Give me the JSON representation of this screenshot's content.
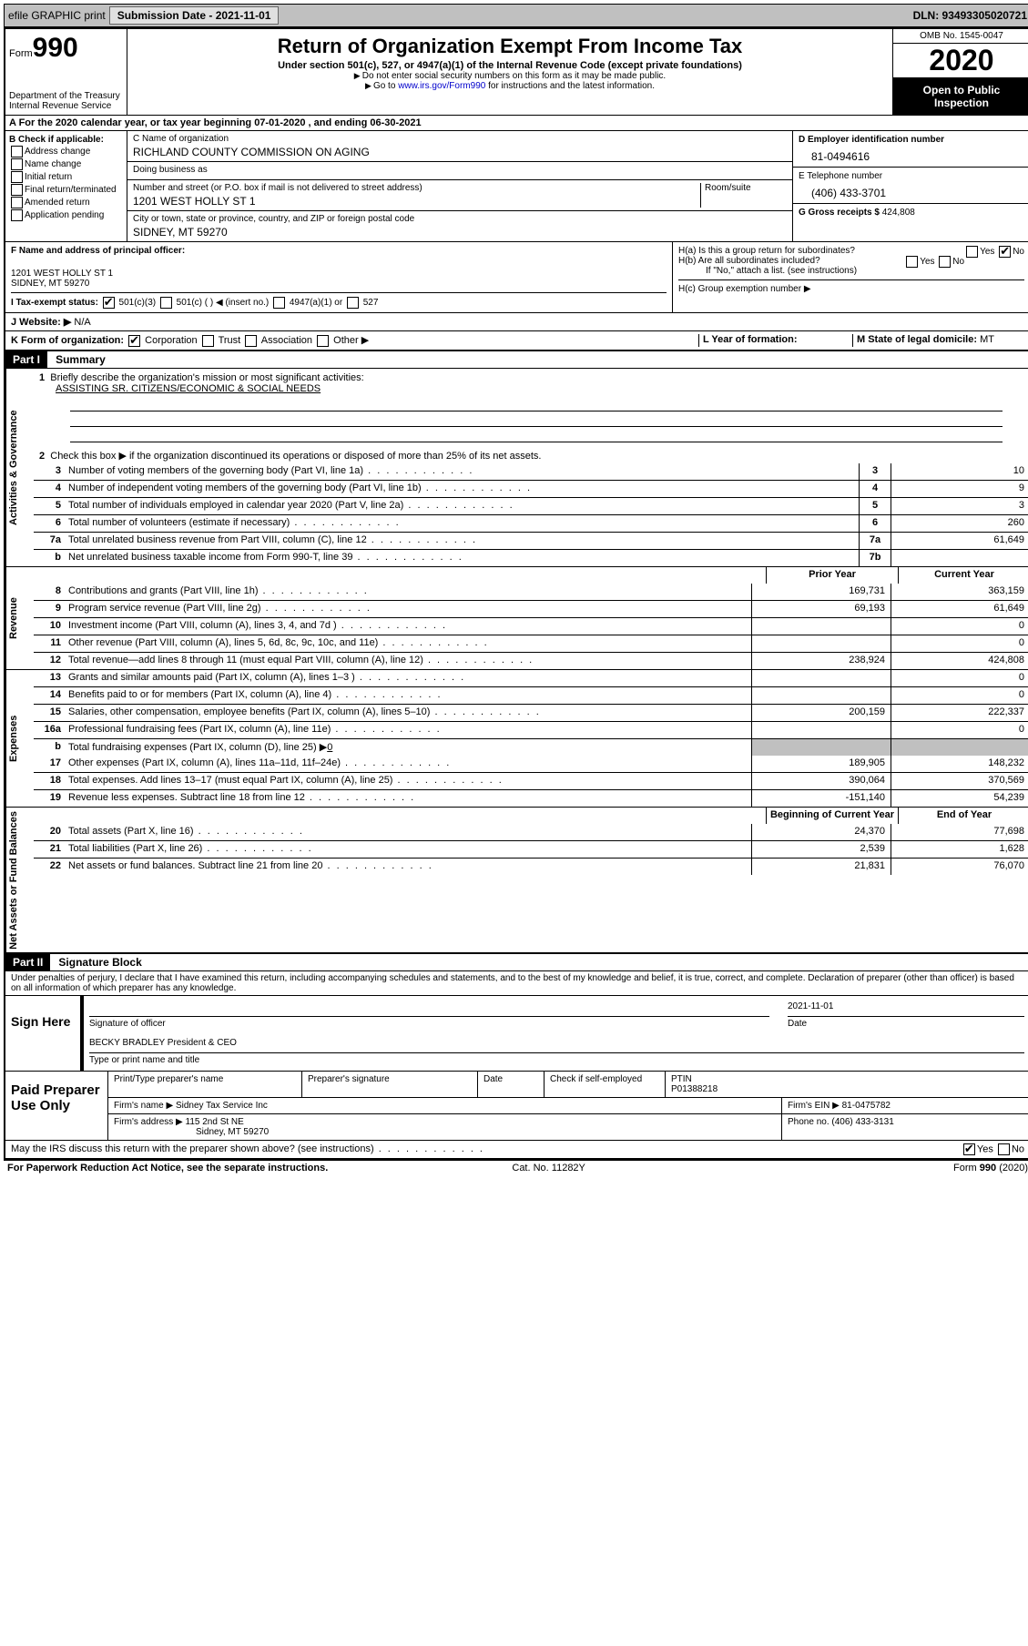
{
  "topbar": {
    "efile": "efile GRAPHIC print",
    "submission_label": "Submission Date - 2021-11-01",
    "dln": "DLN: 93493305020721"
  },
  "header": {
    "form_word": "Form",
    "form_num": "990",
    "dept1": "Department of the Treasury",
    "dept2": "Internal Revenue Service",
    "title": "Return of Organization Exempt From Income Tax",
    "sub1": "Under section 501(c), 527, or 4947(a)(1) of the Internal Revenue Code (except private foundations)",
    "sub2": "Do not enter social security numbers on this form as it may be made public.",
    "sub3_pre": "Go to ",
    "sub3_link": "www.irs.gov/Form990",
    "sub3_post": " for instructions and the latest information.",
    "omb": "OMB No. 1545-0047",
    "year": "2020",
    "inspect": "Open to Public Inspection"
  },
  "row_a": "A For the 2020 calendar year, or tax year beginning 07-01-2020    , and ending 06-30-2021",
  "col_b": {
    "label": "B Check if applicable:",
    "opts": [
      "Address change",
      "Name change",
      "Initial return",
      "Final return/terminated",
      "Amended return",
      "Application pending"
    ]
  },
  "col_c": {
    "name_label": "C Name of organization",
    "name": "RICHLAND COUNTY COMMISSION ON AGING",
    "dba_label": "Doing business as",
    "dba": "",
    "street_label": "Number and street (or P.O. box if mail is not delivered to street address)",
    "room_label": "Room/suite",
    "street": "1201 WEST HOLLY ST 1",
    "city_label": "City or town, state or province, country, and ZIP or foreign postal code",
    "city": "SIDNEY, MT  59270"
  },
  "col_d": {
    "ein_label": "D Employer identification number",
    "ein": "81-0494616",
    "phone_label": "E Telephone number",
    "phone": "(406) 433-3701",
    "gross_label": "G Gross receipts $",
    "gross": "424,808"
  },
  "block_f": {
    "label": "F Name and address of principal officer:",
    "addr1": "1201 WEST HOLLY ST 1",
    "addr2": "SIDNEY, MT  59270"
  },
  "block_h": {
    "ha": "H(a)  Is this a group return for subordinates?",
    "hb": "H(b)  Are all subordinates included?",
    "hb_note": "If \"No,\" attach a list. (see instructions)",
    "hc": "H(c)  Group exemption number ▶",
    "yes": "Yes",
    "no": "No"
  },
  "row_i": {
    "label": "I  Tax-exempt status:",
    "o1": "501(c)(3)",
    "o2": "501(c) (   ) ◀ (insert no.)",
    "o3": "4947(a)(1) or",
    "o4": "527"
  },
  "row_j": {
    "label": "J  Website: ▶",
    "val": "N/A"
  },
  "row_k": {
    "label": "K Form of organization:",
    "o1": "Corporation",
    "o2": "Trust",
    "o3": "Association",
    "o4": "Other ▶",
    "l_label": "L Year of formation:",
    "l_val": "",
    "m_label": "M State of legal domicile:",
    "m_val": "MT"
  },
  "parts": {
    "p1": "Part I",
    "p1_title": "Summary",
    "p2": "Part II",
    "p2_title": "Signature Block"
  },
  "sections": {
    "gov": "Activities & Governance",
    "rev": "Revenue",
    "exp": "Expenses",
    "net": "Net Assets or Fund Balances"
  },
  "q1": {
    "label": "Briefly describe the organization's mission or most significant activities:",
    "val": "ASSISTING SR. CITIZENS/ECONOMIC & SOCIAL NEEDS"
  },
  "q2": "Check this box ▶        if the organization discontinued its operations or disposed of more than 25% of its net assets.",
  "lines_single": [
    {
      "n": "3",
      "t": "Number of voting members of the governing body (Part VI, line 1a)",
      "box": "3",
      "v": "10"
    },
    {
      "n": "4",
      "t": "Number of independent voting members of the governing body (Part VI, line 1b)",
      "box": "4",
      "v": "9"
    },
    {
      "n": "5",
      "t": "Total number of individuals employed in calendar year 2020 (Part V, line 2a)",
      "box": "5",
      "v": "3"
    },
    {
      "n": "6",
      "t": "Total number of volunteers (estimate if necessary)",
      "box": "6",
      "v": "260"
    },
    {
      "n": "7a",
      "t": "Total unrelated business revenue from Part VIII, column (C), line 12",
      "box": "7a",
      "v": "61,649"
    },
    {
      "n": "b",
      "t": "Net unrelated business taxable income from Form 990-T, line 39",
      "box": "7b",
      "v": ""
    }
  ],
  "col_headers": {
    "prior": "Prior Year",
    "curr": "Current Year"
  },
  "rev_lines": [
    {
      "n": "8",
      "t": "Contributions and grants (Part VIII, line 1h)",
      "p": "169,731",
      "c": "363,159"
    },
    {
      "n": "9",
      "t": "Program service revenue (Part VIII, line 2g)",
      "p": "69,193",
      "c": "61,649"
    },
    {
      "n": "10",
      "t": "Investment income (Part VIII, column (A), lines 3, 4, and 7d )",
      "p": "",
      "c": "0"
    },
    {
      "n": "11",
      "t": "Other revenue (Part VIII, column (A), lines 5, 6d, 8c, 9c, 10c, and 11e)",
      "p": "",
      "c": "0"
    },
    {
      "n": "12",
      "t": "Total revenue—add lines 8 through 11 (must equal Part VIII, column (A), line 12)",
      "p": "238,924",
      "c": "424,808"
    }
  ],
  "exp_lines": [
    {
      "n": "13",
      "t": "Grants and similar amounts paid (Part IX, column (A), lines 1–3 )",
      "p": "",
      "c": "0"
    },
    {
      "n": "14",
      "t": "Benefits paid to or for members (Part IX, column (A), line 4)",
      "p": "",
      "c": "0"
    },
    {
      "n": "15",
      "t": "Salaries, other compensation, employee benefits (Part IX, column (A), lines 5–10)",
      "p": "200,159",
      "c": "222,337"
    },
    {
      "n": "16a",
      "t": "Professional fundraising fees (Part IX, column (A), line 11e)",
      "p": "",
      "c": "0"
    }
  ],
  "line16b": {
    "n": "b",
    "t": "Total fundraising expenses (Part IX, column (D), line 25) ▶",
    "v": "0"
  },
  "exp_lines2": [
    {
      "n": "17",
      "t": "Other expenses (Part IX, column (A), lines 11a–11d, 11f–24e)",
      "p": "189,905",
      "c": "148,232"
    },
    {
      "n": "18",
      "t": "Total expenses. Add lines 13–17 (must equal Part IX, column (A), line 25)",
      "p": "390,064",
      "c": "370,569"
    },
    {
      "n": "19",
      "t": "Revenue less expenses. Subtract line 18 from line 12",
      "p": "-151,140",
      "c": "54,239"
    }
  ],
  "net_headers": {
    "beg": "Beginning of Current Year",
    "end": "End of Year"
  },
  "net_lines": [
    {
      "n": "20",
      "t": "Total assets (Part X, line 16)",
      "p": "24,370",
      "c": "77,698"
    },
    {
      "n": "21",
      "t": "Total liabilities (Part X, line 26)",
      "p": "2,539",
      "c": "1,628"
    },
    {
      "n": "22",
      "t": "Net assets or fund balances. Subtract line 21 from line 20",
      "p": "21,831",
      "c": "76,070"
    }
  ],
  "perjury": "Under penalties of perjury, I declare that I have examined this return, including accompanying schedules and statements, and to the best of my knowledge and belief, it is true, correct, and complete. Declaration of preparer (other than officer) is based on all information of which preparer has any knowledge.",
  "sign": {
    "here": "Sign Here",
    "sig_label": "Signature of officer",
    "date_label": "Date",
    "date_val": "2021-11-01",
    "name": "BECKY BRADLEY President & CEO",
    "name_label": "Type or print name and title"
  },
  "prep": {
    "title": "Paid Preparer Use Only",
    "h1": "Print/Type preparer's name",
    "h2": "Preparer's signature",
    "h3": "Date",
    "h4": "Check        if self-employed",
    "h5_label": "PTIN",
    "h5": "P01388218",
    "firm_name_label": "Firm's name    ▶",
    "firm_name": "Sidney Tax Service Inc",
    "firm_ein_label": "Firm's EIN ▶",
    "firm_ein": "81-0475782",
    "firm_addr_label": "Firm's address ▶",
    "firm_addr1": "115 2nd St NE",
    "firm_addr2": "Sidney, MT  59270",
    "firm_phone_label": "Phone no.",
    "firm_phone": "(406) 433-3131"
  },
  "discuss": {
    "text": "May the IRS discuss this return with the preparer shown above? (see instructions)",
    "yes": "Yes",
    "no": "No"
  },
  "footer": {
    "left": "For Paperwork Reduction Act Notice, see the separate instructions.",
    "mid": "Cat. No. 11282Y",
    "right": "Form 990 (2020)"
  }
}
